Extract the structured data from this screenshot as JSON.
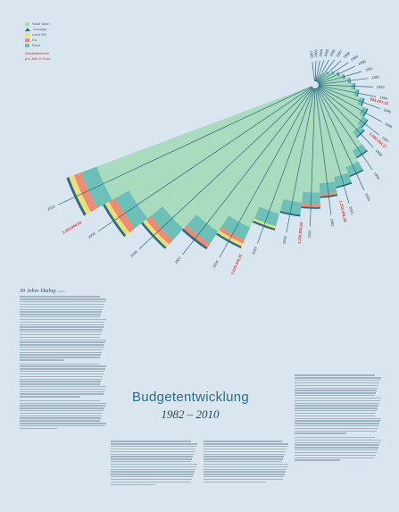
{
  "title": "Budgetentwicklung",
  "subtitle": "1982 – 2010",
  "legend": {
    "items": [
      {
        "label": "Stadt Wien",
        "color": "#a9dbbf",
        "icon": "square-swatch"
      },
      {
        "label": "Sonstige",
        "color": "#2c6b80",
        "icon": "triangle-swatch"
      },
      {
        "label": "Land NÖ",
        "color": "#ecdf77",
        "icon": "square-swatch"
      },
      {
        "label": "EU",
        "color": "#f08a72",
        "icon": "square-swatch"
      },
      {
        "label": "Bund",
        "color": "#6dc0b8",
        "icon": "square-swatch"
      }
    ],
    "note_line1": "Gesamtsumme",
    "note_line2": "pro Jahr in Euro"
  },
  "article": {
    "heading": "30 Jahre Dialog",
    "heading_small": "Lorem"
  },
  "colors": {
    "background": "#d9e6ef",
    "stadt_wien": "#a9dbbf",
    "bund": "#6dc0b8",
    "eu": "#f08a72",
    "land_noe": "#ecdf77",
    "sonstige": "#2c6b80",
    "spoke": "#2c6b80",
    "total_label": "#d23a3a",
    "title": "#2a6e84"
  },
  "chart_data": {
    "type": "radial-bar",
    "title": "Budgetentwicklung",
    "subtitle": "1982 – 2010",
    "years": [
      1982,
      1983,
      1984,
      1985,
      1986,
      1987,
      1988,
      1989,
      1990,
      1991,
      1992,
      1993,
      1994,
      1995,
      1996,
      1997,
      1998,
      1999,
      2000,
      2001,
      2002,
      2003,
      2004,
      2005,
      2006,
      2007,
      2008,
      2009,
      2010
    ],
    "year_labels": [
      "1982",
      "1983",
      "1984",
      "1985",
      "1986",
      "1987",
      "1988",
      "1989",
      "1990",
      "1991",
      "1992",
      "1993",
      "1994",
      "1995",
      "1996",
      "1997",
      "1998",
      "1999",
      "2000",
      "2001",
      "2002",
      "2003",
      "2004",
      "2005",
      "2006",
      "2007",
      "2008",
      "2009",
      "2010"
    ],
    "series": [
      {
        "name": "Stadt Wien",
        "values": [
          20000,
          30000,
          40000,
          60000,
          90000,
          130000,
          170000,
          220000,
          270000,
          320000,
          380000,
          430000,
          480000,
          560000,
          640000,
          700000,
          740000,
          940000,
          1100000,
          1180000,
          1240000,
          1360000,
          1500000,
          1700000,
          2000000,
          2250000,
          2500000,
          2750000,
          3000000
        ]
      },
      {
        "name": "Bund",
        "values": [
          0,
          0,
          0,
          0,
          0,
          0,
          10000,
          15000,
          20000,
          25000,
          30000,
          35000,
          40000,
          50000,
          60000,
          70000,
          80000,
          100000,
          120000,
          130000,
          140000,
          150000,
          160000,
          170000,
          180000,
          190000,
          200000,
          210000,
          220000
        ]
      },
      {
        "name": "EU",
        "values": [
          0,
          0,
          0,
          0,
          0,
          0,
          0,
          0,
          0,
          0,
          0,
          0,
          0,
          0,
          0,
          0,
          0,
          0,
          0,
          0,
          30000,
          40000,
          0,
          0,
          50000,
          60000,
          80000,
          90000,
          100000
        ]
      },
      {
        "name": "Land NÖ",
        "values": [
          0,
          0,
          0,
          0,
          0,
          0,
          0,
          0,
          0,
          0,
          0,
          0,
          0,
          0,
          0,
          0,
          0,
          0,
          0,
          0,
          0,
          0,
          0,
          30000,
          40000,
          0,
          50000,
          60000,
          70000
        ]
      },
      {
        "name": "Sonstige",
        "values": [
          2000,
          3000,
          3000,
          4000,
          5000,
          6000,
          7000,
          8000,
          9000,
          10000,
          10000,
          12000,
          12000,
          15000,
          15000,
          16000,
          17000,
          18000,
          20000,
          20000,
          22000,
          22000,
          24000,
          26000,
          28000,
          30000,
          30000,
          32000,
          34000
        ]
      }
    ],
    "total_labels": [
      {
        "year": 1995,
        "text": "833.457,15"
      },
      {
        "year": 1998,
        "text": "1.082.294,17"
      },
      {
        "year": 2002,
        "text": "1.203.462,28"
      },
      {
        "year": 2004,
        "text": "1.239.859,53"
      },
      {
        "year": 2006,
        "text": "2.029.446,31"
      },
      {
        "year": 2010,
        "text": "3.423,944,60"
      }
    ]
  }
}
